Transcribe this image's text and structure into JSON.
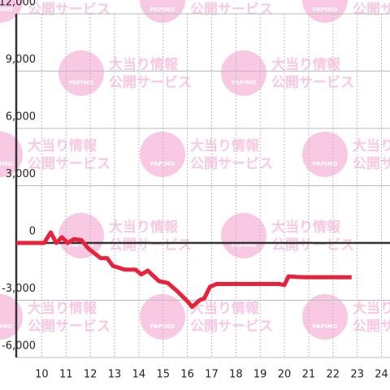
{
  "chart_data": {
    "type": "line",
    "x": [
      8.95,
      10.1,
      10.37,
      10.6,
      10.83,
      11.07,
      11.33,
      11.63,
      11.93,
      12.43,
      12.7,
      12.93,
      13.43,
      13.87,
      14.1,
      14.37,
      14.83,
      15.2,
      15.6,
      16.0,
      16.2,
      16.5,
      16.7,
      16.93,
      17.2,
      18.27,
      19.77,
      20.0,
      20.17,
      20.53,
      20.93,
      22.77
    ],
    "series": [
      {
        "color": "#e8223a",
        "values": [
          0,
          0,
          550,
          0,
          300,
          0,
          200,
          150,
          -300,
          -800,
          -800,
          -1200,
          -1400,
          -1400,
          -1650,
          -1450,
          -2000,
          -2100,
          -2550,
          -3050,
          -3350,
          -3000,
          -2900,
          -2300,
          -2150,
          -2150,
          -2150,
          -2200,
          -1750,
          -1780,
          -1800,
          -1800
        ]
      }
    ],
    "xlim": [
      8.95,
      24.35
    ],
    "ylim": [
      -6000,
      12000
    ],
    "xticks": [
      10,
      11,
      12,
      13,
      14,
      15,
      16,
      17,
      18,
      19,
      20,
      21,
      22,
      23,
      24
    ],
    "yticks": [
      {
        "value": -6000,
        "label": "-6,000"
      },
      {
        "value": -3000,
        "label": "-3,000"
      },
      0,
      {
        "value": 3000,
        "label": "3,000"
      },
      {
        "value": 6000,
        "label": "6,000"
      },
      {
        "value": 9000,
        "label": "9,000"
      },
      {
        "value": 12000,
        "label": "12,000"
      }
    ],
    "grid": true
  },
  "watermark": {
    "brand": "PAPIMO",
    "line1": "大当り情報",
    "line2": "公開サービス"
  }
}
